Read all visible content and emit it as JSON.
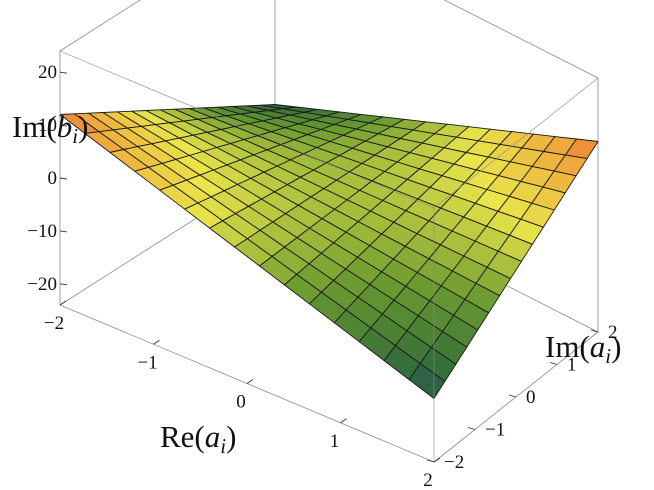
{
  "chart_data": {
    "type": "surface3d",
    "function": "Im(b_i) = 3·Re(a_i)·Im(a_i)",
    "x_axis": {
      "label_prefix": "Re(",
      "label_var": "a",
      "label_sub": "i",
      "label_suffix": ")",
      "range": [
        -2,
        2
      ],
      "ticks": [
        {
          "value": -2,
          "label": "−2"
        },
        {
          "value": -1,
          "label": "−1"
        },
        {
          "value": 0,
          "label": "0"
        },
        {
          "value": 1,
          "label": "1"
        },
        {
          "value": 2,
          "label": "2"
        }
      ]
    },
    "y_axis": {
      "label_prefix": "Im(",
      "label_var": "a",
      "label_sub": "i",
      "label_suffix": ")",
      "range": [
        -2,
        2
      ],
      "ticks": [
        {
          "value": -2,
          "label": "−2"
        },
        {
          "value": -1,
          "label": "−1"
        },
        {
          "value": 0,
          "label": "0"
        },
        {
          "value": 1,
          "label": "1"
        },
        {
          "value": 2,
          "label": "2"
        }
      ]
    },
    "z_axis": {
      "label_prefix": "Im(",
      "label_var": "b",
      "label_sub": "i",
      "label_suffix": ")",
      "range": [
        -24,
        24
      ],
      "ticks": [
        {
          "value": 20,
          "label": "20"
        },
        {
          "value": 10,
          "label": "10"
        },
        {
          "value": 0,
          "label": "0"
        },
        {
          "value": -10,
          "label": "−10"
        },
        {
          "value": -20,
          "label": "−20"
        }
      ]
    },
    "corner_values": [
      {
        "re": -2,
        "im": -2,
        "z": 12
      },
      {
        "re": -2,
        "im": 2,
        "z": -12
      },
      {
        "re": 2,
        "im": -2,
        "z": -12
      },
      {
        "re": 2,
        "im": 2,
        "z": 12
      }
    ],
    "colormap": [
      "#2a3f8f",
      "#2f6a3a",
      "#6a9a30",
      "#e9e54a",
      "#f0a13a",
      "#e02a2a"
    ],
    "grid": true,
    "mesh_lines": 15
  }
}
